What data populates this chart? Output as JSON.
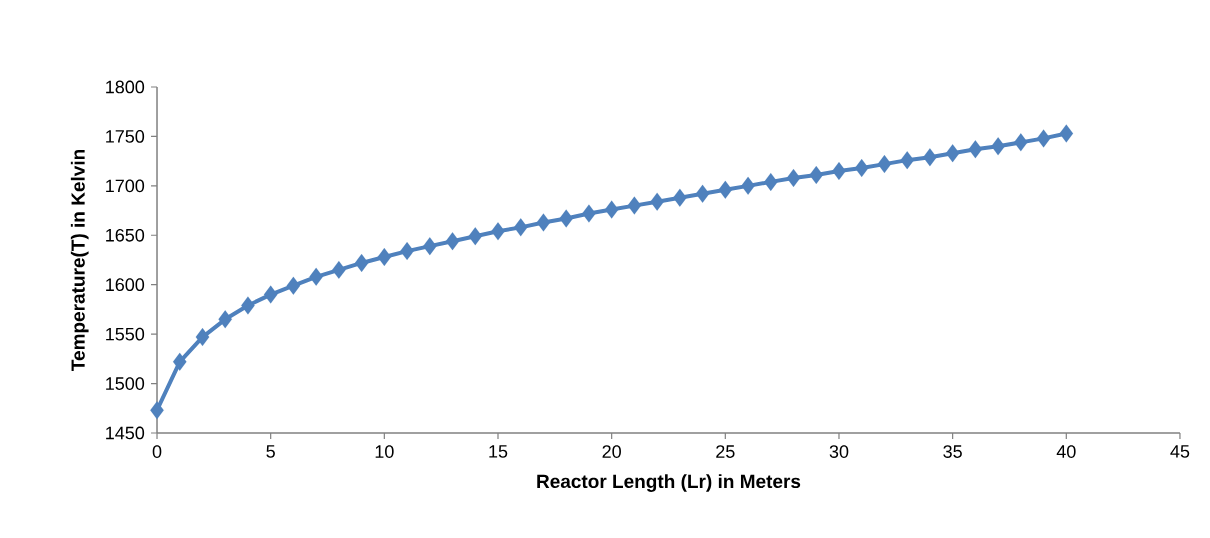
{
  "chart_data": {
    "type": "line",
    "xlabel": "Reactor Length (Lr) in Meters",
    "ylabel": "Temperature(T) in Kelvin",
    "x": [
      0,
      1,
      2,
      3,
      4,
      5,
      6,
      7,
      8,
      9,
      10,
      11,
      12,
      13,
      14,
      15,
      16,
      17,
      18,
      19,
      20,
      21,
      22,
      23,
      24,
      25,
      26,
      27,
      28,
      29,
      30,
      31,
      32,
      33,
      34,
      35,
      36,
      37,
      38,
      39,
      40
    ],
    "values": [
      1473,
      1522,
      1547,
      1565,
      1579,
      1590,
      1599,
      1608,
      1615,
      1622,
      1628,
      1634,
      1639,
      1644,
      1649,
      1654,
      1658,
      1663,
      1667,
      1672,
      1676,
      1680,
      1684,
      1688,
      1692,
      1696,
      1700,
      1704,
      1708,
      1711,
      1715,
      1718,
      1722,
      1726,
      1729,
      1733,
      1737,
      1740,
      1744,
      1748,
      1753
    ],
    "color": "#4f81bd",
    "marker": "diamond",
    "line_style": "solid",
    "grid": false,
    "xlim": [
      0,
      45
    ],
    "xticks": [
      0,
      5,
      10,
      15,
      20,
      25,
      30,
      35,
      40,
      45
    ],
    "ylim": [
      1450,
      1800
    ],
    "yticks": [
      1450,
      1500,
      1550,
      1600,
      1650,
      1700,
      1750,
      1800
    ]
  }
}
